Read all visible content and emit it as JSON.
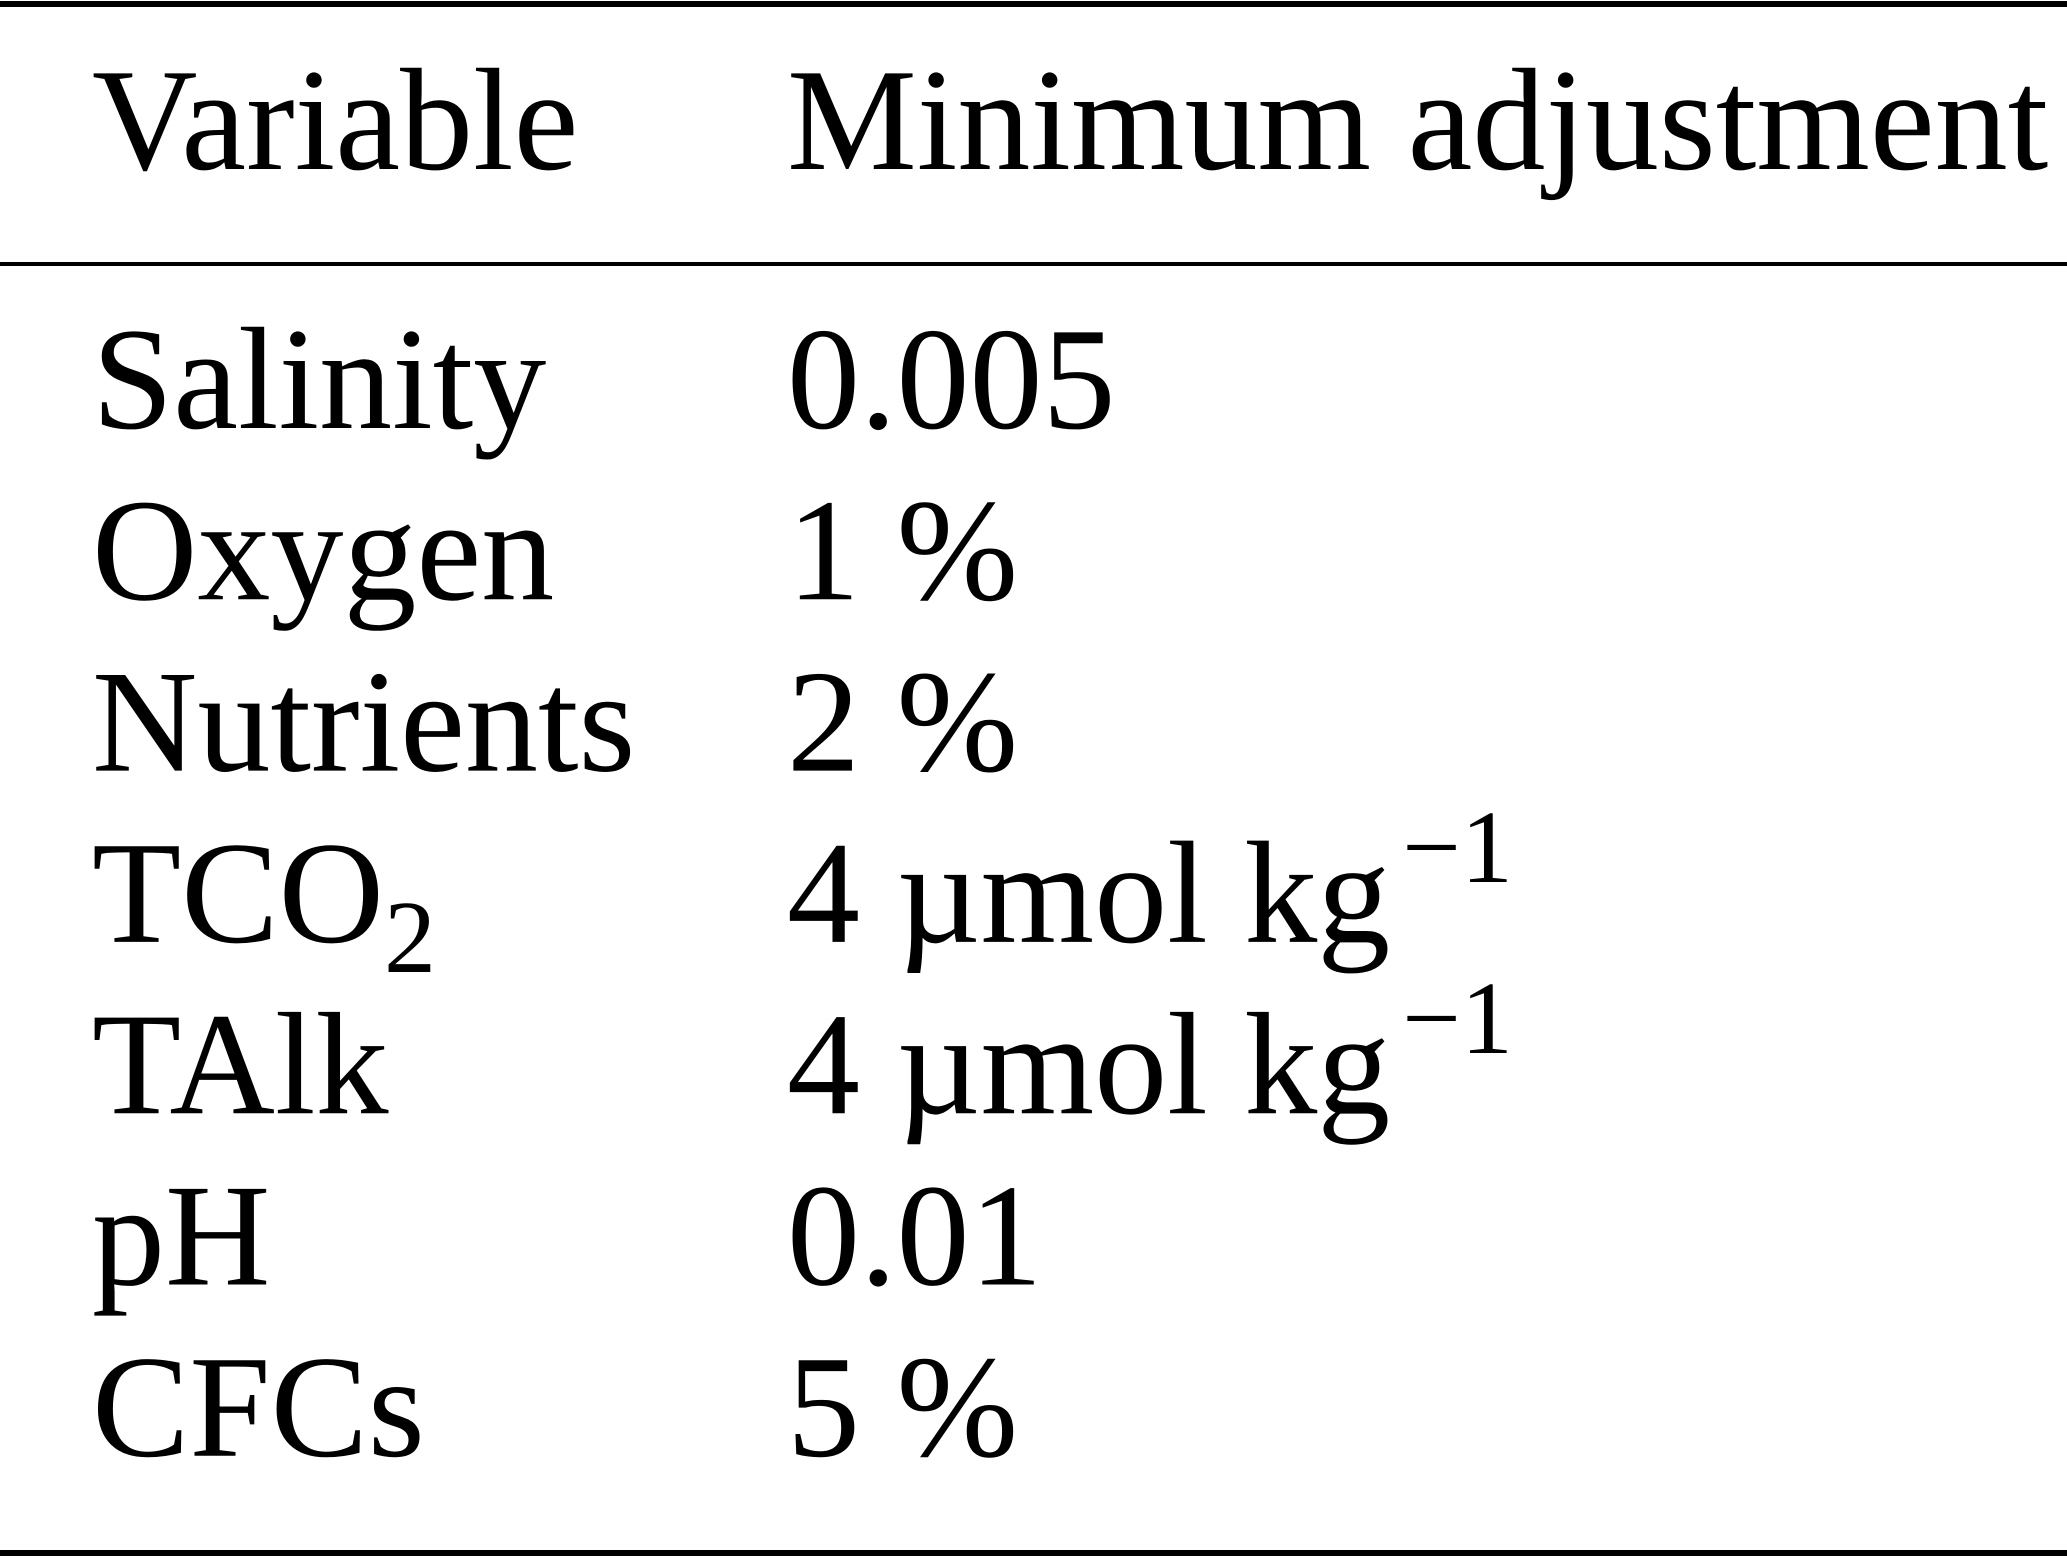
{
  "table": {
    "header": [
      "Variable",
      "Minimum adjustment"
    ],
    "rows": [
      [
        "Salinity",
        "0.005"
      ],
      [
        "Oxygen",
        "1 %"
      ],
      [
        "Nutrients",
        "2 %"
      ],
      [
        {
          "text": "TCO",
          "sub": "2"
        },
        {
          "text": "4 µmol kg",
          "sup": "−1"
        }
      ],
      [
        "TAlk",
        {
          "text": "4 µmol kg",
          "sup": "−1"
        }
      ],
      [
        "pH",
        "0.01"
      ],
      [
        "CFCs",
        "5 %"
      ]
    ]
  }
}
